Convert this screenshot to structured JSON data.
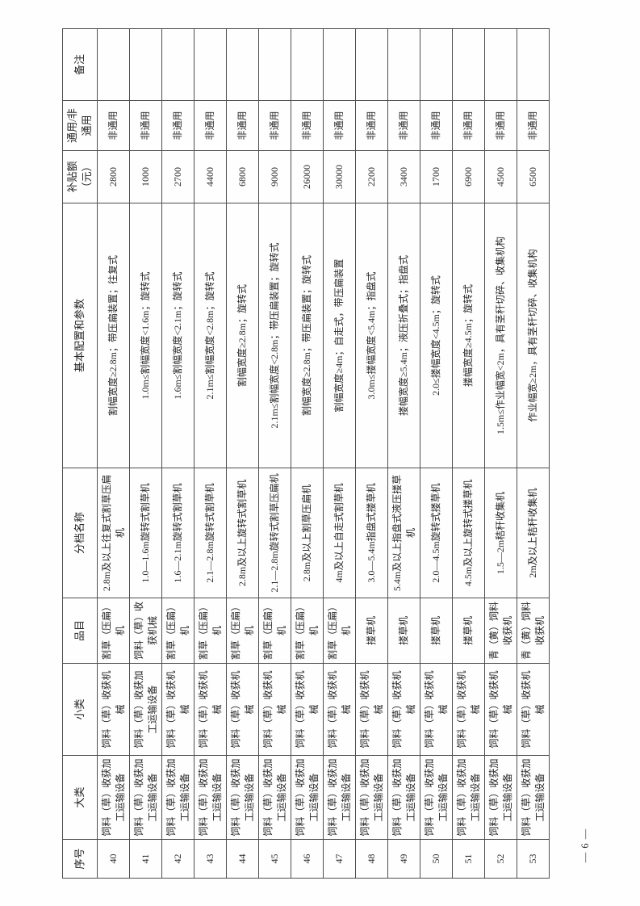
{
  "page": {
    "footer_page_number": "— 6 —"
  },
  "colors": {
    "page_background": "#fefefe",
    "table_border": "#4f4f4f",
    "ink": "#262626"
  },
  "table": {
    "orientation": "rotated-90-ccw",
    "headers": [
      "序号",
      "大类",
      "小类",
      "品目",
      "分档名称",
      "基本配置和参数",
      "补贴额（元）",
      "通用/非通用",
      "备注"
    ],
    "rows": [
      [
        "40",
        "饲料（草）收获加工运输设备",
        "饲料（草）收获机械",
        "割草（压扁）机",
        "2.8m及以上往复式割草压扁机",
        "割幅宽度≥2.8m；带压扁装置；往复式",
        "2800",
        "非通用",
        ""
      ],
      [
        "41",
        "饲料（草）收获加工运输设备",
        "饲料（草）收获加工运输设备",
        "饲料（草）收获机械",
        "1.0—1.6m旋转式割草机",
        "1.0m≤割幅宽度<1.6m；旋转式",
        "1000",
        "非通用",
        ""
      ],
      [
        "42",
        "饲料（草）收获加工运输设备",
        "饲料（草）收获机械",
        "割草（压扁）机",
        "1.6—2.1m旋转式割草机",
        "1.6m≤割幅宽度<2.1m；旋转式",
        "2700",
        "非通用",
        ""
      ],
      [
        "43",
        "饲料（草）收获加工运输设备",
        "饲料（草）收获机械",
        "割草（压扁）机",
        "2.1—2.8m旋转式割草机",
        "2.1m≤割幅宽度<2.8m；旋转式",
        "4400",
        "非通用",
        ""
      ],
      [
        "44",
        "饲料（草）收获加工运输设备",
        "饲料（草）收获机械",
        "割草（压扁）机",
        "2.8m及以上旋转式割草机",
        "割幅宽度≥2.8m；旋转式",
        "6800",
        "非通用",
        ""
      ],
      [
        "45",
        "饲料（草）收获加工运输设备",
        "饲料（草）收获机械",
        "割草（压扁）机",
        "2.1—2.8m旋转式割草压扁机",
        "2.1m≤割幅宽度<2.8m；带压扁装置；旋转式",
        "9000",
        "非通用",
        ""
      ],
      [
        "46",
        "饲料（草）收获加工运输设备",
        "饲料（草）收获机械",
        "割草（压扁）机",
        "2.8m及以上割草压扁机",
        "割幅宽度≥2.8m；带压扁装置；旋转式",
        "26000",
        "非通用",
        ""
      ],
      [
        "47",
        "饲料（草）收获加工运输设备",
        "饲料（草）收获机械",
        "割草（压扁）机",
        "4m及以上自走式割草机",
        "割幅宽度≥4m；自走式，带压扁装置",
        "30000",
        "非通用",
        ""
      ],
      [
        "48",
        "饲料（草）收获加工运输设备",
        "饲料（草）收获机械",
        "搂草机",
        "3.0—5.4m指盘式搂草机",
        "3.0m≤搂幅宽度<5.4m；指盘式",
        "2200",
        "非通用",
        ""
      ],
      [
        "49",
        "饲料（草）收获加工运输设备",
        "饲料（草）收获机械",
        "搂草机",
        "5.4m及以上指盘式液压搂草机",
        "搂幅宽度≥5.4m；液压折叠式；指盘式",
        "3400",
        "非通用",
        ""
      ],
      [
        "50",
        "饲料（草）收获加工运输设备",
        "饲料（草）收获机械",
        "搂草机",
        "2.0—4.5m旋转式搂草机",
        "2.0≤搂幅宽度<4.5m；旋转式",
        "1700",
        "非通用",
        ""
      ],
      [
        "51",
        "饲料（草）收获加工运输设备",
        "饲料（草）收获机械",
        "搂草机",
        "4.5m及以上旋转式搂草机",
        "搂幅宽度≥4.5m；旋转式",
        "6900",
        "非通用",
        ""
      ],
      [
        "52",
        "饲料（草）收获加工运输设备",
        "饲料（草）收获机械",
        "青（黄）饲料收获机",
        "1.5—2m秸秆收集机",
        "1.5m≤作业幅宽<2m，具有茎秆切碎、收集机构",
        "4500",
        "非通用",
        ""
      ],
      [
        "53",
        "饲料（草）收获加工运输设备",
        "饲料（草）收获机械",
        "青（黄）饲料收获机",
        "2m及以上秸秆收集机",
        "作业幅宽≥2m，具有茎秆切碎、收集机构",
        "6500",
        "非通用",
        ""
      ]
    ]
  }
}
